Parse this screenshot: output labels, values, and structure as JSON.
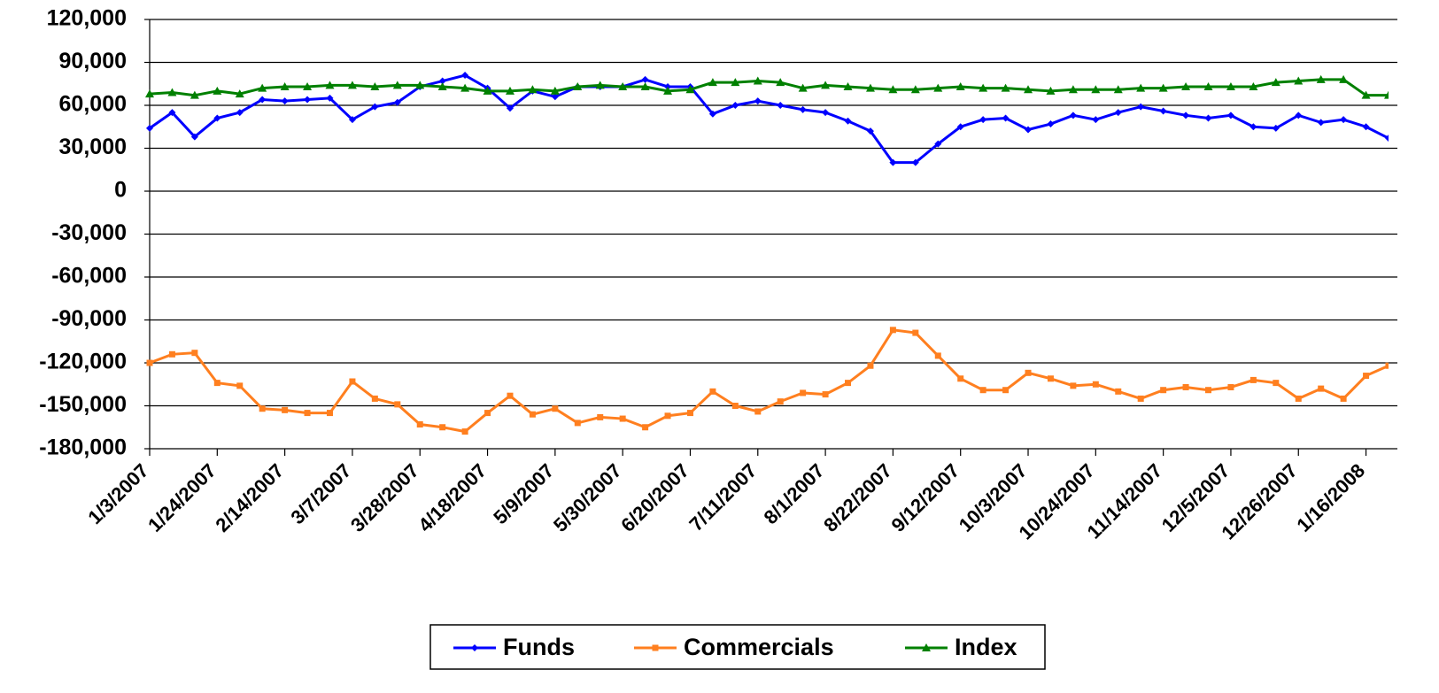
{
  "chart_data": {
    "type": "line",
    "categories": [
      "1/3/2007",
      null,
      null,
      "1/24/2007",
      null,
      null,
      "2/14/2007",
      null,
      null,
      "3/7/2007",
      null,
      null,
      "3/28/2007",
      null,
      null,
      "4/18/2007",
      null,
      null,
      "5/9/2007",
      null,
      null,
      "5/30/2007",
      null,
      null,
      "6/20/2007",
      null,
      null,
      "7/11/2007",
      null,
      null,
      "8/1/2007",
      null,
      null,
      "8/22/2007",
      null,
      null,
      "9/12/2007",
      null,
      null,
      "10/3/2007",
      null,
      null,
      "10/24/2007",
      null,
      null,
      "11/14/2007",
      null,
      null,
      "12/5/2007",
      null,
      null,
      "12/26/2007",
      null,
      null,
      "1/16/2008",
      null
    ],
    "series": [
      {
        "name": "Funds",
        "color": "#0000ff",
        "marker": "diamond",
        "values": [
          44000,
          55000,
          38000,
          51000,
          55000,
          64000,
          63000,
          64000,
          65000,
          50000,
          59000,
          62000,
          73000,
          77000,
          81000,
          72000,
          58000,
          70000,
          66000,
          73000,
          73000,
          73000,
          78000,
          73000,
          73000,
          54000,
          60000,
          63000,
          60000,
          57000,
          55000,
          49000,
          42000,
          20000,
          20000,
          33000,
          45000,
          50000,
          51000,
          43000,
          47000,
          53000,
          50000,
          55000,
          59000,
          56000,
          53000,
          51000,
          53000,
          45000,
          44000,
          53000,
          48000,
          50000,
          45000,
          37000
        ]
      },
      {
        "name": "Commercials",
        "color": "#ff7f1f",
        "marker": "square",
        "values": [
          -120000,
          -114000,
          -113000,
          -134000,
          -136000,
          -152000,
          -153000,
          -155000,
          -155000,
          -133000,
          -145000,
          -149000,
          -163000,
          -165000,
          -168000,
          -155000,
          -143000,
          -156000,
          -152000,
          -162000,
          -158000,
          -159000,
          -165000,
          -157000,
          -155000,
          -140000,
          -150000,
          -154000,
          -147000,
          -141000,
          -142000,
          -134000,
          -122000,
          -97000,
          -99000,
          -115000,
          -131000,
          -139000,
          -139000,
          -127000,
          -131000,
          -136000,
          -135000,
          -140000,
          -145000,
          -139000,
          -137000,
          -139000,
          -137000,
          -132000,
          -134000,
          -145000,
          -138000,
          -145000,
          -129000,
          -122000
        ]
      },
      {
        "name": "Index",
        "color": "#008000",
        "marker": "triangle",
        "values": [
          68000,
          69000,
          67000,
          70000,
          68000,
          72000,
          73000,
          73000,
          74000,
          74000,
          73000,
          74000,
          74000,
          73000,
          72000,
          70000,
          70000,
          71000,
          70000,
          73000,
          74000,
          73000,
          73000,
          70000,
          71000,
          76000,
          76000,
          77000,
          76000,
          72000,
          74000,
          73000,
          72000,
          71000,
          71000,
          72000,
          73000,
          72000,
          72000,
          71000,
          70000,
          71000,
          71000,
          71000,
          72000,
          72000,
          73000,
          73000,
          73000,
          73000,
          76000,
          77000,
          78000,
          78000,
          67000,
          67000
        ]
      }
    ],
    "ylim": [
      -180000,
      120000
    ],
    "yticks": [
      {
        "value": -180000,
        "label": "-180,000"
      },
      {
        "value": -150000,
        "label": "-150,000"
      },
      {
        "value": -120000,
        "label": "-120,000"
      },
      {
        "value": -90000,
        "label": "-90,000"
      },
      {
        "value": -60000,
        "label": "-60,000"
      },
      {
        "value": -30000,
        "label": "-30,000"
      },
      0,
      {
        "value": 30000,
        "label": "30,000"
      },
      {
        "value": 60000,
        "label": "60,000"
      },
      {
        "value": 90000,
        "label": "90,000"
      },
      {
        "value": 120000,
        "label": "120,000"
      }
    ],
    "grid": true,
    "legend": "bottom"
  }
}
